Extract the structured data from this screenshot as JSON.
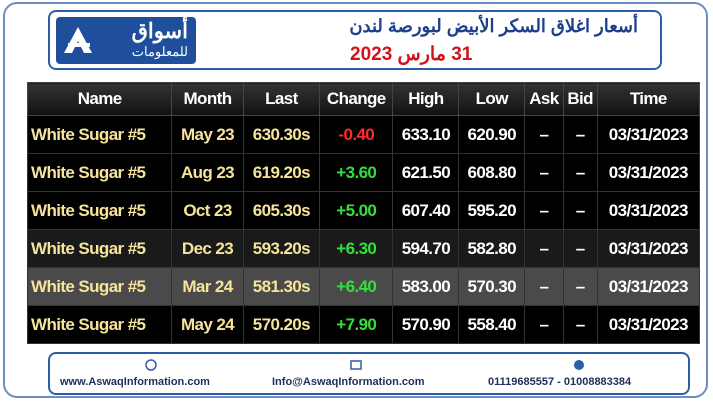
{
  "header": {
    "logo_main": "أسواق",
    "logo_sub": "للمعلومات",
    "title": "أسعار اغلاق السكر الأبيض لبورصة لندن",
    "date": "31 مارس 2023"
  },
  "table": {
    "columns": [
      "Name",
      "Month",
      "Last",
      "Change",
      "High",
      "Low",
      "Ask",
      "Bid",
      "Time"
    ],
    "rows": [
      [
        "White Sugar #5",
        "May 23",
        "630.30s",
        "-0.40",
        "633.10",
        "620.90",
        "–",
        "–",
        "03/31/2023"
      ],
      [
        "White Sugar #5",
        "Aug 23",
        "619.20s",
        "+3.60",
        "621.50",
        "608.80",
        "–",
        "–",
        "03/31/2023"
      ],
      [
        "White Sugar #5",
        "Oct 23",
        "605.30s",
        "+5.00",
        "607.40",
        "595.20",
        "–",
        "–",
        "03/31/2023"
      ],
      [
        "White Sugar #5",
        "Dec 23",
        "593.20s",
        "+6.30",
        "594.70",
        "582.80",
        "–",
        "–",
        "03/31/2023"
      ],
      [
        "White Sugar #5",
        "Mar 24",
        "581.30s",
        "+6.40",
        "583.00",
        "570.30",
        "–",
        "–",
        "03/31/2023"
      ],
      [
        "White Sugar #5",
        "May 24",
        "570.20s",
        "+7.90",
        "570.90",
        "558.40",
        "–",
        "–",
        "03/31/2023"
      ]
    ]
  },
  "footer": {
    "website": "www.AswaqInformation.com",
    "email": "Info@AswaqInformation.com",
    "phones": "01119685557 - 01008883384"
  }
}
